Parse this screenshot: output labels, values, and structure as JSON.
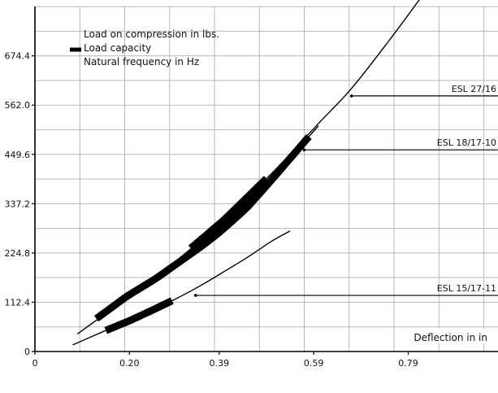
{
  "chart_data": {
    "type": "line",
    "title": "",
    "xlabel": "Deflection in in",
    "ylabel": "",
    "xlim": [
      0,
      0.98
    ],
    "ylim": [
      0,
      787
    ],
    "x_ticks": [
      0,
      0.2,
      0.39,
      0.59,
      0.79
    ],
    "x_tick_labels": [
      "0",
      "0.20",
      "0.39",
      "0.59",
      "0.79"
    ],
    "y_ticks": [
      0,
      112.4,
      224.8,
      337.2,
      449.6,
      562.0,
      674.4
    ],
    "y_tick_labels": [
      "0",
      "112.4",
      "224.8",
      "337.2",
      "449.6",
      "562.0",
      "674.4"
    ],
    "grid": true,
    "legend": {
      "placement": "top-left",
      "entries": [
        "Load on compression in lbs.",
        "Load capacity",
        "Natural frequency in Hz"
      ]
    },
    "series": [
      {
        "name": "ESL 27/16",
        "x": [
          0.09,
          0.2,
          0.3,
          0.4,
          0.5,
          0.6,
          0.67,
          0.75,
          0.82
        ],
        "y": [
          40,
          126,
          208,
          300,
          405,
          520,
          600,
          710,
          812
        ],
        "load_capacity_range": [
          0.33,
          0.49
        ],
        "label_point": [
          0.67,
          583
        ]
      },
      {
        "name": "ESL 18/17-10",
        "x": [
          0.13,
          0.2,
          0.25,
          0.3,
          0.35,
          0.4,
          0.45,
          0.5,
          0.55,
          0.6
        ],
        "y": [
          75,
          130,
          162,
          200,
          238,
          280,
          330,
          390,
          453,
          515
        ],
        "load_capacity_range": [
          0.13,
          0.58
        ],
        "label_point": [
          0.57,
          460
        ]
      },
      {
        "name": "ESL 15/17-11",
        "x": [
          0.08,
          0.15,
          0.2,
          0.25,
          0.3,
          0.35,
          0.4,
          0.45,
          0.5,
          0.54
        ],
        "y": [
          15,
          48,
          70,
          95,
          121,
          150,
          182,
          215,
          251,
          275
        ],
        "load_capacity_range": [
          0.15,
          0.29
        ],
        "label_point": [
          0.34,
          128
        ]
      }
    ]
  }
}
